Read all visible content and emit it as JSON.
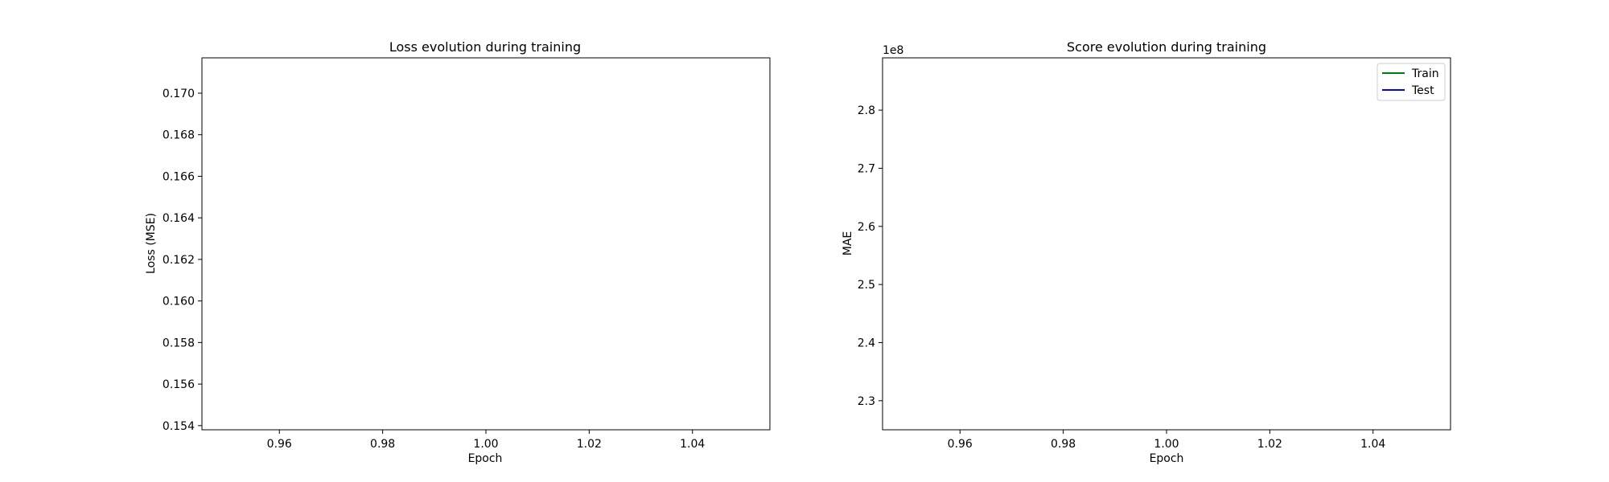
{
  "chart_data": [
    {
      "type": "line",
      "title": "Loss evolution during training",
      "xlabel": "Epoch",
      "ylabel": "Loss (MSE)",
      "xlim": [
        0.945,
        1.055
      ],
      "ylim": [
        0.1538,
        0.1717
      ],
      "xticks": [
        0.96,
        0.98,
        1.0,
        1.02,
        1.04
      ],
      "xtick_labels": [
        "0.96",
        "0.98",
        "1.00",
        "1.02",
        "1.04"
      ],
      "yticks": [
        0.154,
        0.156,
        0.158,
        0.16,
        0.162,
        0.164,
        0.166,
        0.168,
        0.17
      ],
      "ytick_labels": [
        "0.154",
        "0.156",
        "0.158",
        "0.160",
        "0.162",
        "0.164",
        "0.166",
        "0.168",
        "0.170"
      ],
      "series": [],
      "grid": false
    },
    {
      "type": "line",
      "title": "Score evolution during training",
      "xlabel": "Epoch",
      "ylabel": "MAE",
      "offset_label": "1e8",
      "xlim": [
        0.945,
        1.055
      ],
      "ylim": [
        2.25,
        2.89
      ],
      "xticks": [
        0.96,
        0.98,
        1.0,
        1.02,
        1.04
      ],
      "xtick_labels": [
        "0.96",
        "0.98",
        "1.00",
        "1.02",
        "1.04"
      ],
      "yticks": [
        2.3,
        2.4,
        2.5,
        2.6,
        2.7,
        2.8
      ],
      "ytick_labels": [
        "2.3",
        "2.4",
        "2.5",
        "2.6",
        "2.7",
        "2.8"
      ],
      "series": [
        {
          "name": "Train",
          "color": "#008000",
          "x": [],
          "y": []
        },
        {
          "name": "Test",
          "color": "#0000ff",
          "x": [],
          "y": []
        }
      ],
      "legend": "top-right",
      "grid": false
    }
  ]
}
